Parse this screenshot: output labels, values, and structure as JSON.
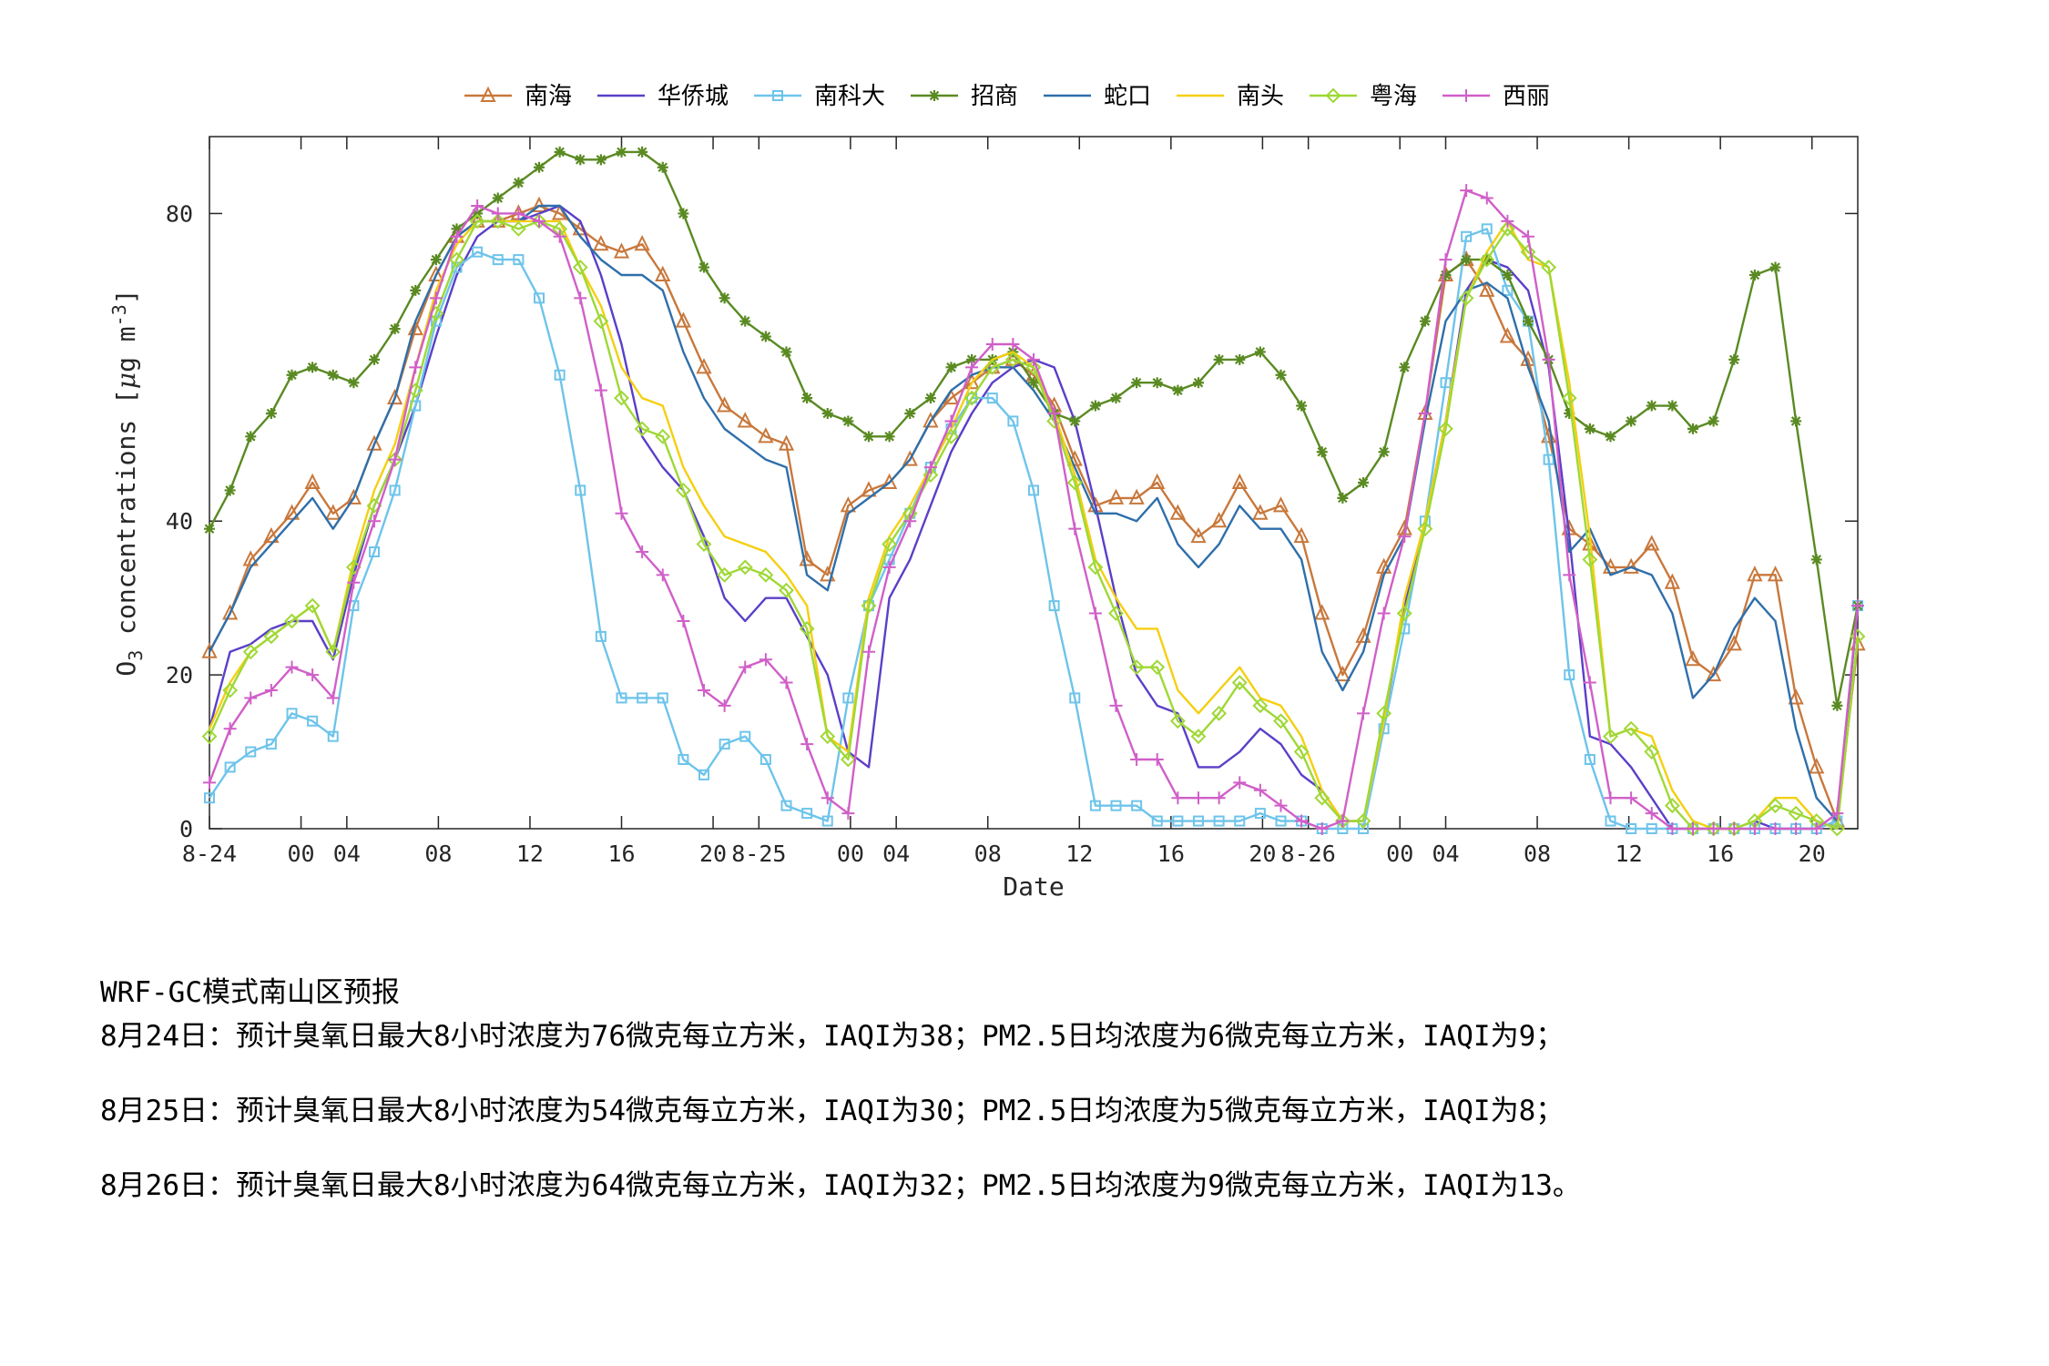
{
  "chart_data": {
    "type": "line",
    "xlabel": "Date",
    "ylabel": "O3 concentrations [μg m-3]",
    "ylabel_parts": {
      "main": "O",
      "sub": "3",
      "rest": " concentrations [",
      "mu": "μ",
      "unit": "g m",
      "sup": "-3",
      "close": "]"
    },
    "ylim": [
      0,
      90
    ],
    "yticks": [
      0,
      20,
      40,
      80
    ],
    "x_hour_range": [
      0,
      72
    ],
    "xticks": [
      {
        "hour": 0,
        "label": "8-24"
      },
      {
        "hour": 4,
        "label": "00"
      },
      {
        "hour": 6,
        "label": "04"
      },
      {
        "hour": 10,
        "label": "08"
      },
      {
        "hour": 14,
        "label": "12"
      },
      {
        "hour": 18,
        "label": "16"
      },
      {
        "hour": 22,
        "label": "20"
      },
      {
        "hour": 24,
        "label": "8-25"
      },
      {
        "hour": 28,
        "label": "00"
      },
      {
        "hour": 30,
        "label": "04"
      },
      {
        "hour": 34,
        "label": "08"
      },
      {
        "hour": 38,
        "label": "12"
      },
      {
        "hour": 42,
        "label": "16"
      },
      {
        "hour": 46,
        "label": "20"
      },
      {
        "hour": 48,
        "label": "8-26"
      },
      {
        "hour": 52,
        "label": "00"
      },
      {
        "hour": 54,
        "label": "04"
      },
      {
        "hour": 58,
        "label": "08"
      },
      {
        "hour": 62,
        "label": "12"
      },
      {
        "hour": 66,
        "label": "16"
      },
      {
        "hour": 70,
        "label": "20"
      }
    ],
    "series": [
      {
        "name": "南海",
        "color": "#c8783c",
        "marker": "triangle",
        "values": [
          23,
          28,
          35,
          38,
          41,
          45,
          41,
          43,
          50,
          56,
          65,
          72,
          77,
          79,
          79,
          80,
          81,
          80,
          78,
          76,
          75,
          76,
          72,
          66,
          60,
          55,
          53,
          51,
          50,
          35,
          33,
          42,
          44,
          45,
          48,
          53,
          56,
          58,
          60,
          61,
          59,
          55,
          48,
          42,
          43,
          43,
          45,
          41,
          38,
          40,
          45,
          41,
          42,
          38,
          28,
          20,
          25,
          34,
          39,
          54,
          72,
          74,
          70,
          64,
          61,
          51,
          39,
          37,
          34,
          34,
          37,
          32,
          22,
          20,
          24,
          33,
          33,
          17,
          8,
          1,
          24
        ]
      },
      {
        "name": "华侨城",
        "color": "#5b3fc8",
        "marker": "none",
        "values": [
          13,
          23,
          24,
          26,
          27,
          27,
          22,
          33,
          42,
          48,
          55,
          64,
          72,
          77,
          79,
          79,
          80,
          81,
          79,
          72,
          63,
          51,
          47,
          44,
          38,
          30,
          27,
          30,
          30,
          25,
          20,
          10,
          8,
          30,
          35,
          42,
          49,
          54,
          58,
          60,
          61,
          60,
          53,
          42,
          30,
          20,
          16,
          15,
          8,
          8,
          10,
          13,
          11,
          7,
          5,
          1,
          1,
          14,
          29,
          40,
          53,
          70,
          74,
          73,
          70,
          60,
          38,
          12,
          11,
          8,
          4,
          0,
          0,
          0,
          0,
          1,
          0,
          0,
          0,
          1,
          29
        ]
      },
      {
        "name": "南科大",
        "color": "#6ec4ea",
        "marker": "square",
        "values": [
          4,
          8,
          10,
          11,
          15,
          14,
          12,
          29,
          36,
          44,
          55,
          66,
          73,
          75,
          74,
          74,
          69,
          59,
          44,
          25,
          17,
          17,
          17,
          9,
          7,
          11,
          12,
          9,
          3,
          2,
          1,
          17,
          29,
          35,
          41,
          47,
          52,
          56,
          56,
          53,
          44,
          29,
          17,
          3,
          3,
          3,
          1,
          1,
          1,
          1,
          1,
          2,
          1,
          1,
          0,
          0,
          0,
          13,
          26,
          40,
          58,
          77,
          78,
          70,
          66,
          48,
          20,
          9,
          1,
          0,
          0,
          0,
          0,
          0,
          0,
          0,
          0,
          0,
          0,
          1,
          29
        ]
      },
      {
        "name": "招商",
        "color": "#5a8a22",
        "marker": "star",
        "values": [
          39,
          44,
          51,
          54,
          59,
          60,
          59,
          58,
          61,
          65,
          70,
          74,
          78,
          80,
          82,
          84,
          86,
          88,
          87,
          87,
          88,
          88,
          86,
          80,
          73,
          69,
          66,
          64,
          62,
          56,
          54,
          53,
          51,
          51,
          54,
          56,
          60,
          61,
          61,
          62,
          58,
          54,
          53,
          55,
          56,
          58,
          58,
          57,
          58,
          61,
          61,
          62,
          59,
          55,
          49,
          43,
          45,
          49,
          60,
          66,
          72,
          74,
          74,
          72,
          66,
          61,
          54,
          52,
          51,
          53,
          55,
          55,
          52,
          53,
          61,
          72,
          73,
          53,
          35,
          16,
          29
        ]
      },
      {
        "name": "蛇口",
        "color": "#2f6faa",
        "marker": "none",
        "values": [
          23,
          28,
          34,
          37,
          40,
          43,
          39,
          43,
          50,
          56,
          66,
          72,
          77,
          79,
          79,
          79,
          81,
          81,
          77,
          74,
          72,
          72,
          70,
          62,
          56,
          52,
          50,
          48,
          47,
          33,
          31,
          41,
          43,
          45,
          48,
          53,
          57,
          59,
          60,
          60,
          57,
          53,
          47,
          41,
          41,
          40,
          43,
          37,
          34,
          37,
          42,
          39,
          39,
          35,
          23,
          18,
          23,
          33,
          38,
          53,
          66,
          70,
          71,
          69,
          60,
          53,
          36,
          39,
          33,
          34,
          33,
          28,
          17,
          20,
          26,
          30,
          27,
          13,
          4,
          1,
          29
        ]
      },
      {
        "name": "南头",
        "color": "#f5cf10",
        "marker": "none",
        "values": [
          13,
          19,
          23,
          25,
          27,
          29,
          23,
          35,
          44,
          50,
          60,
          70,
          76,
          79,
          79,
          79,
          79,
          79,
          73,
          68,
          60,
          56,
          55,
          47,
          42,
          38,
          37,
          36,
          33,
          29,
          12,
          10,
          30,
          38,
          42,
          47,
          52,
          58,
          61,
          62,
          60,
          54,
          46,
          35,
          30,
          26,
          26,
          18,
          15,
          18,
          21,
          17,
          16,
          12,
          5,
          1,
          1,
          14,
          30,
          40,
          53,
          69,
          75,
          79,
          74,
          73,
          58,
          38,
          12,
          13,
          12,
          5,
          1,
          0,
          0,
          1,
          4,
          4,
          1,
          0,
          25
        ]
      },
      {
        "name": "粤海",
        "color": "#9fd836",
        "marker": "diamond",
        "values": [
          12,
          18,
          23,
          25,
          27,
          29,
          23,
          34,
          42,
          48,
          57,
          67,
          74,
          79,
          79,
          78,
          79,
          78,
          73,
          66,
          56,
          52,
          51,
          44,
          37,
          33,
          34,
          33,
          31,
          26,
          12,
          9,
          29,
          37,
          41,
          46,
          51,
          56,
          60,
          61,
          60,
          53,
          45,
          34,
          28,
          21,
          21,
          14,
          12,
          15,
          19,
          16,
          14,
          10,
          4,
          1,
          1,
          15,
          28,
          39,
          52,
          69,
          74,
          78,
          75,
          73,
          56,
          35,
          12,
          13,
          10,
          3,
          0,
          0,
          0,
          1,
          3,
          2,
          1,
          0,
          25
        ]
      },
      {
        "name": "西丽",
        "color": "#d05fc8",
        "marker": "plus",
        "values": [
          6,
          13,
          17,
          18,
          21,
          20,
          17,
          32,
          40,
          48,
          60,
          69,
          77,
          81,
          80,
          80,
          79,
          77,
          69,
          57,
          41,
          36,
          33,
          27,
          18,
          16,
          21,
          22,
          19,
          11,
          4,
          2,
          23,
          34,
          40,
          47,
          53,
          60,
          63,
          63,
          61,
          54,
          39,
          28,
          16,
          9,
          9,
          4,
          4,
          4,
          6,
          5,
          3,
          1,
          0,
          1,
          15,
          28,
          38,
          54,
          74,
          83,
          82,
          79,
          77,
          61,
          33,
          19,
          4,
          4,
          2,
          0,
          0,
          0,
          0,
          0,
          0,
          0,
          0,
          2,
          29
        ]
      }
    ]
  },
  "forecast": {
    "title": "WRF-GC模式南山区预报",
    "lines": [
      "8月24日：预计臭氧日最大8小时浓度为76微克每立方米，IAQI为38；PM2.5日均浓度为6微克每立方米，IAQI为9；",
      "8月25日：预计臭氧日最大8小时浓度为54微克每立方米，IAQI为30；PM2.5日均浓度为5微克每立方米，IAQI为8；",
      "8月26日：预计臭氧日最大8小时浓度为64微克每立方米，IAQI为32；PM2.5日均浓度为9微克每立方米，IAQI为13。"
    ]
  }
}
